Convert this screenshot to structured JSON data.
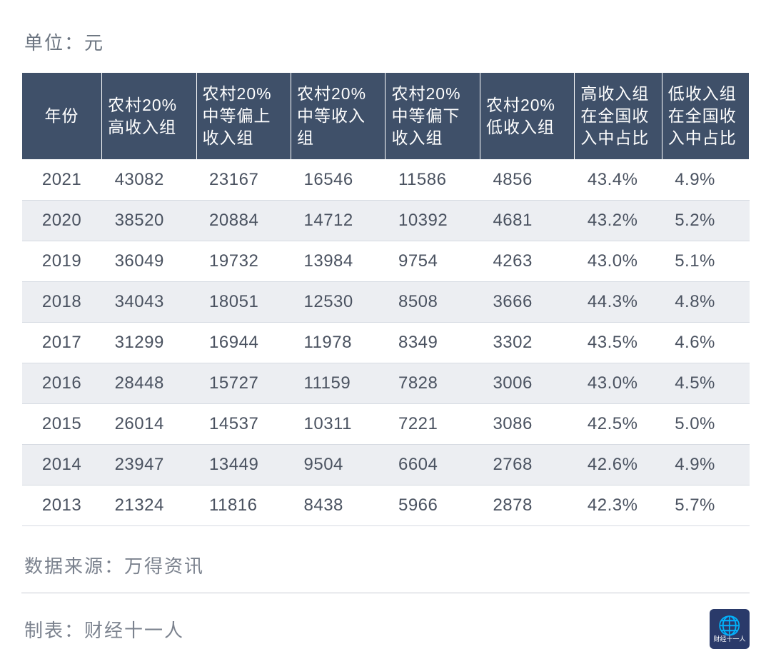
{
  "unit_label": "单位：元",
  "table": {
    "type": "table",
    "header_bg": "#3f5069",
    "header_fg": "#ffffff",
    "row_odd_bg": "#ffffff",
    "row_even_bg": "#eceef2",
    "border_color": "#d6dbe2",
    "text_color": "#4a5260",
    "header_fontsize": 23,
    "cell_fontsize": 24,
    "columns": [
      "年份",
      "农村20%高收入组",
      "农村20%中等偏上收入组",
      "农村20%中等收入组",
      "农村20%中等偏下收入组",
      "农村20%低收入组",
      "高收入组在全国收入中占比",
      "低收入组在全国收入中占比"
    ],
    "rows": [
      [
        "2021",
        "43082",
        "23167",
        "16546",
        "11586",
        "4856",
        "43.4%",
        "4.9%"
      ],
      [
        "2020",
        "38520",
        "20884",
        "14712",
        "10392",
        "4681",
        "43.2%",
        "5.2%"
      ],
      [
        "2019",
        "36049",
        "19732",
        "13984",
        "9754",
        "4263",
        "43.0%",
        "5.1%"
      ],
      [
        "2018",
        "34043",
        "18051",
        "12530",
        "8508",
        "3666",
        "44.3%",
        "4.8%"
      ],
      [
        "2017",
        "31299",
        "16944",
        "11978",
        "8349",
        "3302",
        "43.5%",
        "4.6%"
      ],
      [
        "2016",
        "28448",
        "15727",
        "11159",
        "7828",
        "3006",
        "43.0%",
        "4.5%"
      ],
      [
        "2015",
        "26014",
        "14537",
        "10311",
        "7221",
        "3086",
        "42.5%",
        "5.0%"
      ],
      [
        "2014",
        "23947",
        "13449",
        "9504",
        "6604",
        "2768",
        "42.6%",
        "4.9%"
      ],
      [
        "2013",
        "21324",
        "11816",
        "8438",
        "5966",
        "2878",
        "42.3%",
        "5.7%"
      ]
    ]
  },
  "source_label": "数据来源：万得资讯",
  "author_label": "制表：财经十一人",
  "logo_text": "财经十一人",
  "colors": {
    "page_bg": "#ffffff",
    "muted_text": "#7b828e",
    "divider": "#c7ccd4",
    "logo_bg": "#2a3a6a"
  }
}
